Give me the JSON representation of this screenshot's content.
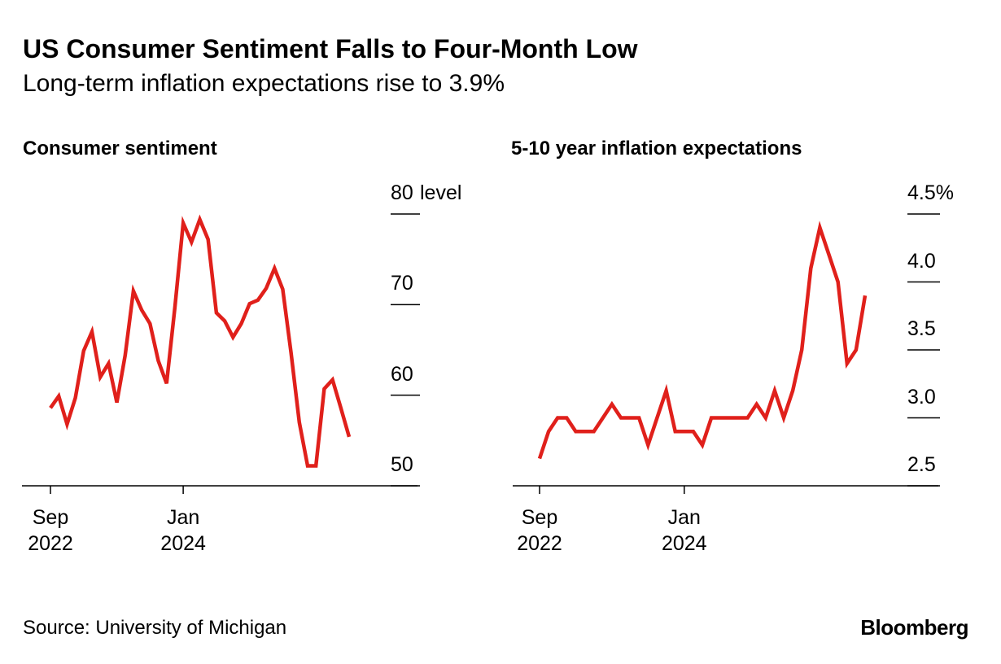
{
  "header": {
    "title": "US Consumer Sentiment Falls to Four-Month Low",
    "subtitle": "Long-term inflation expectations rise to 3.9%"
  },
  "footer": {
    "source": "Source: University of Michigan",
    "brand": "Bloomberg"
  },
  "chart_data": [
    {
      "type": "line",
      "title": "Consumer sentiment",
      "y_unit": "level",
      "x": [
        "2022-09",
        "2022-10",
        "2022-11",
        "2022-12",
        "2023-01",
        "2023-02",
        "2023-03",
        "2023-04",
        "2023-05",
        "2023-06",
        "2023-07",
        "2023-08",
        "2023-09",
        "2023-10",
        "2023-11",
        "2023-12",
        "2024-01",
        "2024-02",
        "2024-03",
        "2024-04",
        "2024-05",
        "2024-06",
        "2024-07",
        "2024-08",
        "2024-09",
        "2024-10",
        "2024-11",
        "2024-12",
        "2025-01",
        "2025-02",
        "2025-03",
        "2025-04",
        "2025-05",
        "2025-06",
        "2025-07",
        "2025-08",
        "2025-09"
      ],
      "series": [
        {
          "name": "Consumer sentiment",
          "color": "#e0201b",
          "values": [
            58.6,
            59.9,
            56.8,
            59.7,
            64.9,
            67.0,
            62.0,
            63.5,
            59.2,
            64.4,
            71.5,
            69.4,
            67.9,
            63.8,
            61.3,
            69.7,
            79.0,
            76.9,
            79.4,
            77.2,
            69.1,
            68.2,
            66.4,
            67.9,
            70.1,
            70.5,
            71.8,
            74.0,
            71.7,
            64.7,
            57.0,
            52.2,
            52.2,
            60.7,
            61.7,
            58.6,
            55.4
          ]
        }
      ],
      "xticks": [
        {
          "value": "2022-09",
          "label": "Sep 2022"
        },
        {
          "value": "2024-01",
          "label": "Jan 2024"
        }
      ],
      "ylim": [
        50,
        80
      ],
      "yticks": [
        80,
        70,
        60,
        50
      ]
    },
    {
      "type": "line",
      "title": "5-10 year inflation expectations",
      "x": [
        "2022-09",
        "2022-10",
        "2022-11",
        "2022-12",
        "2023-01",
        "2023-02",
        "2023-03",
        "2023-04",
        "2023-05",
        "2023-06",
        "2023-07",
        "2023-08",
        "2023-09",
        "2023-10",
        "2023-11",
        "2023-12",
        "2024-01",
        "2024-02",
        "2024-03",
        "2024-04",
        "2024-05",
        "2024-06",
        "2024-07",
        "2024-08",
        "2024-09",
        "2024-10",
        "2024-11",
        "2024-12",
        "2025-01",
        "2025-02",
        "2025-03",
        "2025-04",
        "2025-05",
        "2025-06",
        "2025-07",
        "2025-08",
        "2025-09"
      ],
      "series": [
        {
          "name": "5-10 year inflation expectations",
          "color": "#e0201b",
          "values": [
            2.7,
            2.9,
            3.0,
            3.0,
            2.9,
            2.9,
            2.9,
            3.0,
            3.1,
            3.0,
            3.0,
            3.0,
            2.8,
            3.0,
            3.2,
            2.9,
            2.9,
            2.9,
            2.8,
            3.0,
            3.0,
            3.0,
            3.0,
            3.0,
            3.1,
            3.0,
            3.2,
            3.0,
            3.2,
            3.5,
            4.1,
            4.4,
            4.2,
            4.0,
            3.4,
            3.5,
            3.9
          ]
        }
      ],
      "xticks": [
        {
          "value": "2022-09",
          "label": "Sep 2022"
        },
        {
          "value": "2024-01",
          "label": "Jan 2024"
        }
      ],
      "ylim": [
        2.5,
        4.5
      ],
      "yticks": [
        {
          "value": 4.5,
          "label": "4.5%"
        },
        {
          "value": 4.0,
          "label": "4.0"
        },
        {
          "value": 3.5,
          "label": "3.5"
        },
        {
          "value": 3.0,
          "label": "3.0"
        },
        {
          "value": 2.5,
          "label": "2.5"
        }
      ]
    }
  ]
}
